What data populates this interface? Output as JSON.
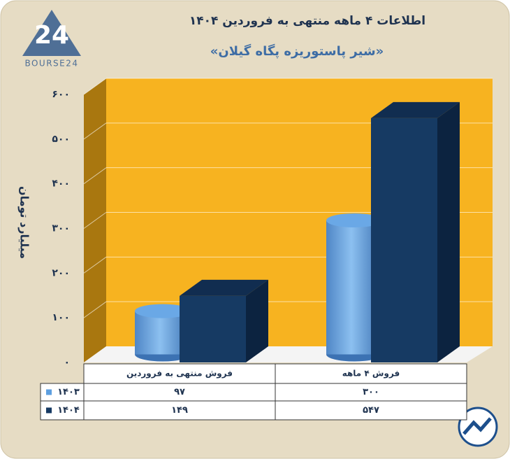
{
  "brand": "BOURSE24",
  "chart_data": {
    "type": "bar3d",
    "title": "اطلاعات ۴ ماهه منتهی به فروردین ۱۴۰۴",
    "subtitle": "«شیر پاستوریزه پگاه گیلان»",
    "y_label": "میلیارد تومان",
    "categories": [
      "فروش منتهی به  فروردین",
      "فروش ۴ ماهه"
    ],
    "series": [
      {
        "name": "۱۴۰۳",
        "color": "#5d9fe0",
        "values": [
          97,
          300
        ],
        "value_labels": [
          "۹۷",
          "۳۰۰"
        ]
      },
      {
        "name": "۱۴۰۴",
        "color": "#163a63",
        "values": [
          149,
          547
        ],
        "value_labels": [
          "۱۴۹",
          "۵۴۷"
        ]
      }
    ],
    "ylim": [
      0,
      600
    ],
    "yticks": [
      {
        "value": 0,
        "label": "۰"
      },
      {
        "value": 100,
        "label": "۱۰۰"
      },
      {
        "value": 200,
        "label": "۲۰۰"
      },
      {
        "value": 300,
        "label": "۳۰۰"
      },
      {
        "value": 400,
        "label": "۴۰۰"
      },
      {
        "value": 500,
        "label": "۵۰۰"
      },
      {
        "value": 600,
        "label": "۶۰۰"
      }
    ],
    "grid": true,
    "wall_color": "#f7b320"
  }
}
